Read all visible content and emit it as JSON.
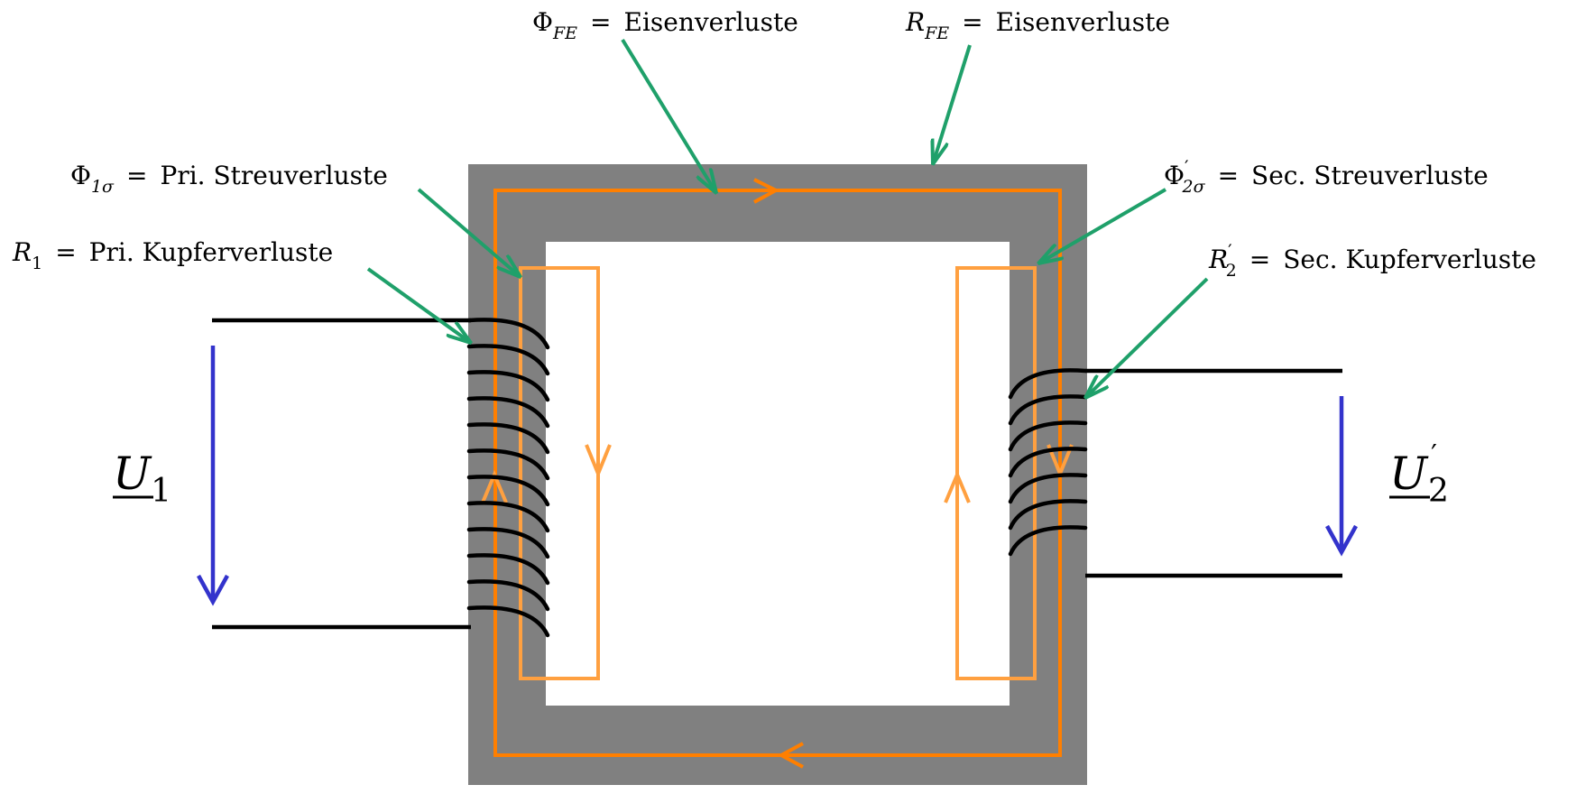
{
  "colors": {
    "core": "#808080",
    "main_flux": "#ff7f00",
    "leakage_flux": "#ffa040",
    "winding": "#000000",
    "annotation_arrow": "#1fa06a",
    "voltage_arrow": "#3333cc"
  },
  "annotations": {
    "phi_fe": {
      "sym": "Φ",
      "sub": "FE",
      "eq": "=",
      "text": "Eisenverluste"
    },
    "r_fe": {
      "sym": "R",
      "sub": "FE",
      "eq": "=",
      "text": "Eisenverluste"
    },
    "phi_1s": {
      "sym": "Φ",
      "sub": "1σ",
      "eq": "=",
      "text": "Pri. Streuverluste"
    },
    "r_1": {
      "sym": "R",
      "sub": "1",
      "eq": "=",
      "text": "Pri. Kupferverluste"
    },
    "phi_2s": {
      "sym": "Φ",
      "sup": "′",
      "sub": "2σ",
      "eq": "=",
      "text": "Sec. Streuverluste"
    },
    "r_2": {
      "sym": "R",
      "sup": "′",
      "sub": "2",
      "eq": "=",
      "text": "Sec. Kupferverluste"
    }
  },
  "voltages": {
    "u1": {
      "sym": "U",
      "sub": "1"
    },
    "u2": {
      "sym": "U",
      "sup": "′",
      "sub": "2"
    }
  }
}
